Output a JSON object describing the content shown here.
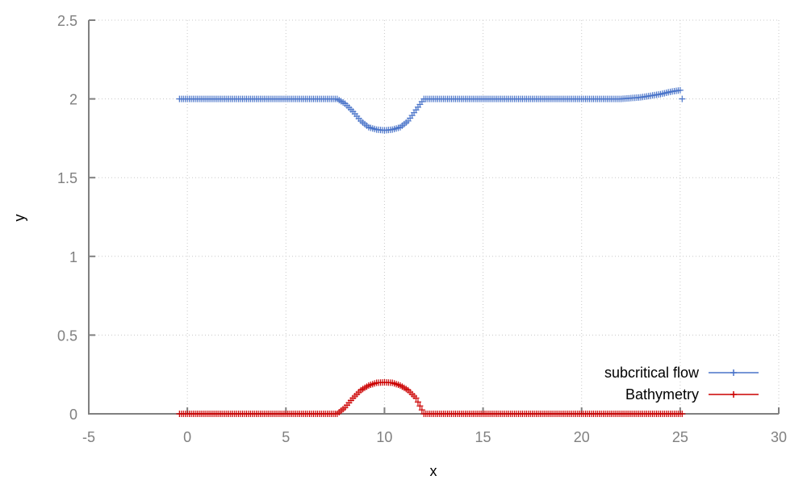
{
  "chart_data": {
    "type": "scatter",
    "xlabel": "x",
    "ylabel": "y",
    "xlim": [
      -5,
      30
    ],
    "ylim": [
      0,
      2.5
    ],
    "xticks": [
      "-5",
      "0",
      "5",
      "10",
      "15",
      "20",
      "25",
      "30"
    ],
    "yticks": [
      "0",
      "0.5",
      "1",
      "1.5",
      "2",
      "2.5"
    ],
    "grid": true,
    "legend_position": "bottom-right",
    "marker": "plus",
    "series": [
      {
        "name": "subcritical flow",
        "color": "#4a74c9",
        "x": [
          -0.4,
          0,
          1,
          2,
          3,
          4,
          5,
          6,
          7,
          7.6,
          8,
          8.4,
          8.8,
          9.2,
          9.6,
          10,
          10.4,
          10.8,
          11.2,
          11.6,
          12,
          13,
          14,
          15,
          16,
          17,
          18,
          19,
          20,
          21,
          21.5,
          22,
          22.5,
          23,
          23.5,
          24,
          24.5,
          25,
          25.1
        ],
        "y": [
          2.0,
          2.0,
          2.0,
          2.0,
          2.0,
          2.0,
          2.0,
          2.0,
          2.0,
          2.0,
          1.97,
          1.92,
          1.86,
          1.82,
          1.805,
          1.8,
          1.805,
          1.82,
          1.86,
          1.93,
          2.0,
          2.0,
          2.0,
          2.0,
          2.0,
          2.0,
          2.0,
          2.0,
          2.0,
          2.0,
          2.0,
          2.0,
          2.005,
          2.01,
          2.02,
          2.03,
          2.045,
          2.055,
          2.0
        ]
      },
      {
        "name": "Bathymetry",
        "color": "#cc0000",
        "x": [
          -0.4,
          0,
          1,
          2,
          3,
          4,
          5,
          6,
          7,
          7.6,
          8,
          8.4,
          8.8,
          9.2,
          9.6,
          10,
          10.4,
          10.8,
          11.2,
          11.6,
          12,
          13,
          14,
          15,
          16,
          17,
          18,
          19,
          20,
          21,
          22,
          23,
          24,
          25,
          25.1
        ],
        "y": [
          0,
          0,
          0,
          0,
          0,
          0,
          0,
          0,
          0,
          0,
          0.04,
          0.1,
          0.15,
          0.18,
          0.197,
          0.2,
          0.197,
          0.18,
          0.15,
          0.1,
          0,
          0,
          0,
          0,
          0,
          0,
          0,
          0,
          0,
          0,
          0,
          0,
          0,
          0,
          0
        ]
      }
    ]
  }
}
